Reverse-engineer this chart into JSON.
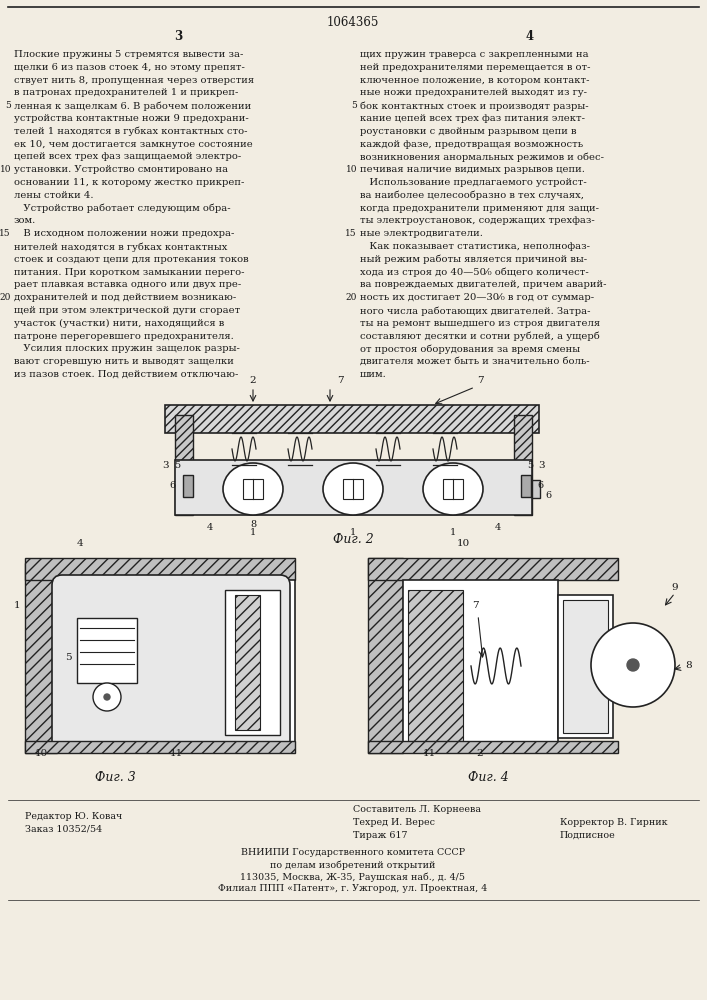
{
  "patent_number": "1064365",
  "page_col_left": "3",
  "page_col_right": "4",
  "col_left_lines": [
    "Плоские пружины 5 стремятся вывести за-",
    "щелки 6 из пазов стоек 4, но этому препят-",
    "ствует нить 8, пропущенная через отверстия",
    "в патронах предохранителей 1 и прикреп-",
    "ленная к защелкам 6. В рабочем положении",
    "устройства контактные ножи 9 предохрани-",
    "телей 1 находятся в губках контактных сто-",
    "ек 10, чем достигается замкнутое состояние",
    "цепей всех трех фаз защищаемой электро-",
    "установки. Устройство смонтировано на",
    "основании 11, к которому жестко прикреп-",
    "лены стойки 4.",
    "   Устройство работает следующим обра-",
    "зом.",
    "   В исходном положении ножи предохра-",
    "нителей находятся в губках контактных",
    "стоек и создают цепи для протекания токов",
    "питания. При коротком замыкании перего-",
    "рает плавкая вставка одного или двух пре-",
    "дохранителей и под действием возникаю-",
    "щей при этом электрической дуги сгорает",
    "участок (участки) нити, находящийся в",
    "патроне перегоревшего предохранителя.",
    "   Усилия плоских пружин защелок разры-",
    "вают сгоревшую нить и выводят защелки",
    "из пазов стоек. Под действием отключаю-"
  ],
  "col_right_lines": [
    "щих пружин траверса с закрепленными на",
    "ней предохранителями перемещается в от-",
    "ключенное положение, в котором контакт-",
    "ные ножи предохранителей выходят из гу-",
    "бок контактных стоек и производят разры-",
    "кание цепей всех трех фаз питания элект-",
    "роустановки с двойным разрывом цепи в",
    "каждой фазе, предотвращая возможность",
    "возникновения анормальных режимов и обес-",
    "печивая наличие видимых разрывов цепи.",
    "   Использование предлагаемого устройст-",
    "ва наиболее целесообразно в тех случаях,",
    "когда предохранители применяют для защи-",
    "ты электроустановок, содержащих трехфаз-",
    "ные электродвигатели.",
    "   Как показывает статистика, неполнофаз-",
    "ный режим работы является причиной вы-",
    "хода из строя до 40—50⁄₀ общего количест-",
    "ва повреждаемых двигателей, причем аварий-",
    "ность их достигает 20—30⁄₀ в год от суммар-",
    "ного числа работающих двигателей. Затра-",
    "ты на ремонт вышедшего из строя двигателя",
    "составляют десятки и сотни рублей, а ущерб",
    "от простоя оборудования за время смены",
    "двигателя может быть и значительно боль-",
    "шим."
  ],
  "line_nums_left": [
    [
      4,
      "5"
    ],
    [
      9,
      "10"
    ],
    [
      14,
      "15"
    ],
    [
      19,
      "20"
    ]
  ],
  "line_nums_right": [
    [
      4,
      "5"
    ],
    [
      9,
      "10"
    ],
    [
      14,
      "15"
    ],
    [
      19,
      "20"
    ]
  ],
  "fig2_label": "Фиг. 2",
  "fig3_label": "Фиг. 3",
  "fig4_label": "Фиг. 4",
  "footer_left1": "Редактор Ю. Ковач",
  "footer_left2": "Заказ 10352/54",
  "footer_center1": "Составитель Л. Корнеева",
  "footer_center2": "Техред И. Верес",
  "footer_center3": "Тираж 617",
  "footer_right2": "Корректор В. Гирник",
  "footer_right3": "Подписное",
  "footer_vniip1": "ВНИИПИ Государственного комитета СССР",
  "footer_vniip2": "по делам изобретений открытий",
  "footer_addr1": "113035, Москва, Ж-35, Раушская наб., д. 4/5",
  "footer_addr2": "Филиал ППП «Патент», г. Ужгород, ул. Проектная, 4",
  "bg_color": "#f2ede2",
  "text_color": "#1a1a1a",
  "line_color": "#222222"
}
